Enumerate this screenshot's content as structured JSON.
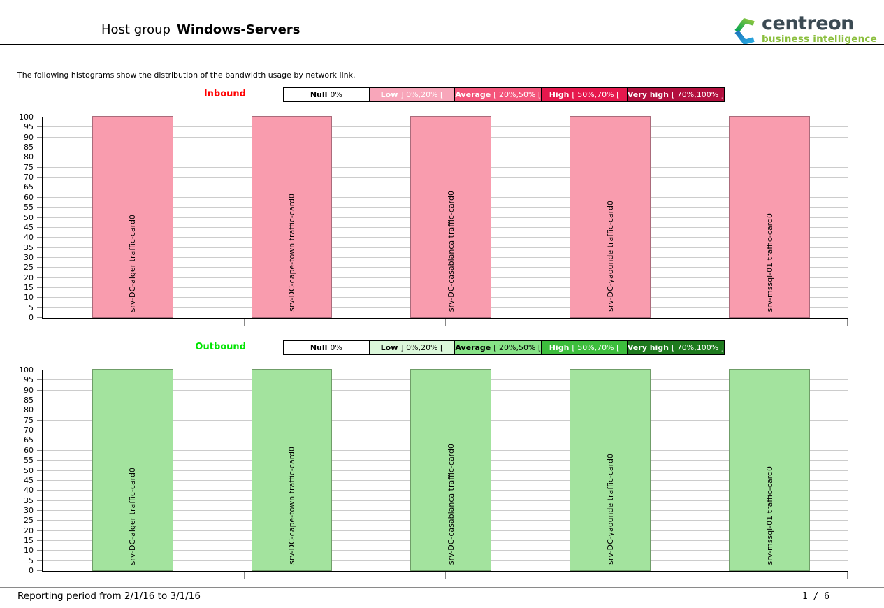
{
  "page": {
    "title_prefix": "Host group",
    "title_name": "Windows-Servers",
    "intro": "The following histograms show the distribution of the bandwidth usage by network link.",
    "footer_period": "Reporting period from 2/1/16 to 3/1/16",
    "footer_page": "1 / 6"
  },
  "logo": {
    "brand": "centreon",
    "tagline": "business intelligence",
    "brand_color": "#3b4a53",
    "tagline_color": "#8bbf3e",
    "mark_green_light": "#8ec63f",
    "mark_green_dark": "#00a551",
    "mark_blue_dark": "#1b75bb",
    "mark_blue_light": "#29abe2"
  },
  "chart_data": [
    {
      "type": "bar",
      "title": "Inbound",
      "direction": "Inbound",
      "direction_color": "#ff0000",
      "categories": [
        "srv-DC-alger traffic-card0",
        "srv-DC-cape-town traffic-card0",
        "srv-DC-casablanca traffic-card0",
        "srv-DC-yaounde traffic-card0",
        "srv-mssql-01 traffic-card0"
      ],
      "values": [
        100,
        100,
        100,
        100,
        100
      ],
      "xlabel": "",
      "ylabel": "",
      "ylim": [
        0,
        100
      ],
      "ytick_step": 5,
      "grid": true,
      "legend_position": "top",
      "bar_fill": "#f99cae",
      "bar_border": "#aa6b7b",
      "legend": [
        {
          "label": "Null",
          "range": "0%",
          "bg": "#ffffff",
          "fg": "#000000"
        },
        {
          "label": "Low",
          "range": "] 0%,20% [",
          "bg": "#f8a6ba",
          "fg": "#ffffff"
        },
        {
          "label": "Average",
          "range": "[ 20%,50% [",
          "bg": "#f4557b",
          "fg": "#ffffff"
        },
        {
          "label": "High",
          "range": "[ 50%,70% [",
          "bg": "#e6184d",
          "fg": "#ffffff"
        },
        {
          "label": "Very high",
          "range": "[ 70%,100% ]",
          "bg": "#b30f3e",
          "fg": "#ffffff"
        }
      ]
    },
    {
      "type": "bar",
      "title": "Outbound",
      "direction": "Outbound",
      "direction_color": "#00e400",
      "categories": [
        "srv-DC-alger traffic-card0",
        "srv-DC-cape-town traffic-card0",
        "srv-DC-casablanca traffic-card0",
        "srv-DC-yaounde traffic-card0",
        "srv-mssql-01 traffic-card0"
      ],
      "values": [
        100,
        100,
        100,
        100,
        100
      ],
      "xlabel": "",
      "ylabel": "",
      "ylim": [
        0,
        100
      ],
      "ytick_step": 5,
      "grid": true,
      "legend_position": "top",
      "bar_fill": "#a3e39e",
      "bar_border": "#6f9d68",
      "legend": [
        {
          "label": "Null",
          "range": "0%",
          "bg": "#ffffff",
          "fg": "#000000"
        },
        {
          "label": "Low",
          "range": "] 0%,20% [",
          "bg": "#dbf7da",
          "fg": "#000000"
        },
        {
          "label": "Average",
          "range": "[ 20%,50% [",
          "bg": "#87e387",
          "fg": "#000000"
        },
        {
          "label": "High",
          "range": "[ 50%,70% [",
          "bg": "#3dbe3d",
          "fg": "#ffffff"
        },
        {
          "label": "Very high",
          "range": "[ 70%,100% ]",
          "bg": "#1e7a1e",
          "fg": "#ffffff"
        }
      ]
    }
  ]
}
